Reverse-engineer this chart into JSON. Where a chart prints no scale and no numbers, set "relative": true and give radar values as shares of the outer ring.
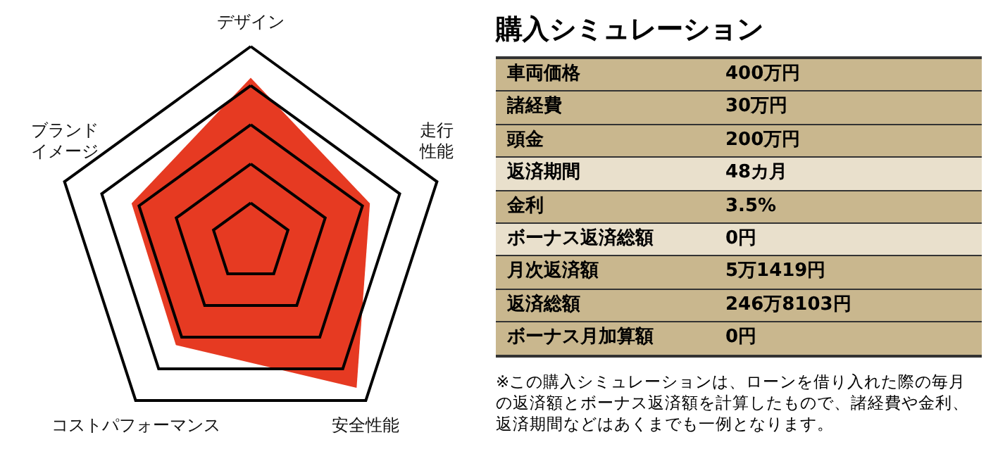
{
  "chart_data": [
    {
      "type": "radar",
      "relative": true,
      "categories": [
        "デザイン",
        "走行性能",
        "安全性能",
        "コストパフォーマンス",
        "ブランドイメージ"
      ],
      "series": [
        {
          "color": "#e63a22",
          "values": [
            0.84,
            0.64,
            0.92,
            0.65,
            0.64
          ]
        }
      ],
      "grid": true
    },
    {
      "type": "other",
      "title": "購入シミュレーション",
      "categories": [
        "車両価格",
        "諸経費",
        "頭金",
        "返済期間",
        "金利",
        "ボーナス返済総額",
        "月次返済額",
        "返済総額",
        "ボーナス月加算額"
      ],
      "value_labels": [
        "400万円",
        "30万円",
        "200万円",
        "48カ月",
        "3.5%",
        "0円",
        "5万1419円",
        "246万8103円",
        "0円"
      ],
      "colors": [
        "#c9b78e",
        "#c9b78e",
        "#c9b78e",
        "#e9e0cc",
        "#c9b78e",
        "#e9e0cc",
        "#c9b78e",
        "#c9b78e",
        "#c9b78e"
      ],
      "annotations": [
        "※この購入シミュレーションは、ローンを借り入れた際の毎月の返済額とボーナス返済額を計算したもので、諸経費や金利、返済期間などはあくまでも一例となります。"
      ]
    }
  ]
}
